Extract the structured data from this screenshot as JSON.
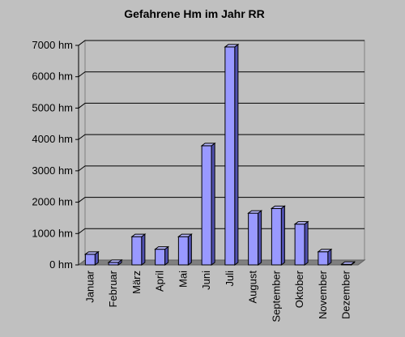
{
  "chart_data": {
    "type": "bar",
    "title": "Gefahrene Hm im Jahr RR",
    "xlabel": "",
    "ylabel": "",
    "unit_suffix": " hm",
    "categories": [
      "Januar",
      "Februar",
      "März",
      "April",
      "Mai",
      "Juni",
      "Juli",
      "August",
      "September",
      "Oktober",
      "November",
      "Dezember"
    ],
    "values": [
      340,
      80,
      900,
      500,
      900,
      3800,
      6950,
      1650,
      1800,
      1300,
      420,
      20
    ],
    "ylim": [
      0,
      7000
    ],
    "yticks": [
      0,
      1000,
      2000,
      3000,
      4000,
      5000,
      6000,
      7000
    ],
    "ytick_labels": [
      "0 hm",
      "1000 hm",
      "2000 hm",
      "3000 hm",
      "4000 hm",
      "5000 hm",
      "6000 hm",
      "7000 hm"
    ],
    "grid": true,
    "legend": "none",
    "style": "3d",
    "colors": {
      "background": "#c0c0c0",
      "bar_front": "#9999ff",
      "bar_side": "#5050b0",
      "bar_top": "#b8b8ff",
      "bar_edge": "#000000",
      "floor": "#808080",
      "gridline": "#000000"
    }
  }
}
